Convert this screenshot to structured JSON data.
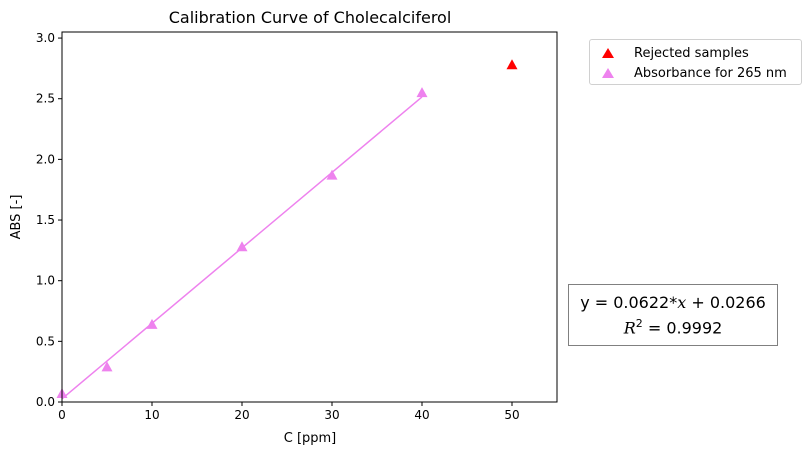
{
  "chart_data": {
    "type": "scatter",
    "title": "Calibration Curve of Cholecalciferol",
    "xlabel": "C [ppm]",
    "ylabel": "ABS [-]",
    "xlim": [
      0,
      55
    ],
    "ylim": [
      0,
      3.05
    ],
    "xticks": [
      "0",
      "10",
      "20",
      "30",
      "40",
      "50"
    ],
    "xtick_values": [
      0,
      10,
      20,
      30,
      40,
      50
    ],
    "yticks": [
      "0.0",
      "0.5",
      "1.0",
      "1.5",
      "2.0",
      "2.5",
      "3.0"
    ],
    "ytick_values": [
      0,
      0.5,
      1.0,
      1.5,
      2.0,
      2.5,
      3.0
    ],
    "grid": false,
    "legend_position": "outside-top-right",
    "series": [
      {
        "name": "Rejected samples",
        "marker": "triangle",
        "color": "#ff0000",
        "x": [
          50
        ],
        "y": [
          2.78
        ]
      },
      {
        "name": "Absorbance for 265 nm",
        "marker": "triangle",
        "color": "#ee82ee",
        "x": [
          0,
          5,
          10,
          20,
          30,
          40
        ],
        "y": [
          0.07,
          0.29,
          0.64,
          1.28,
          1.87,
          2.55
        ]
      }
    ],
    "fit_line": {
      "color": "#ee82ee",
      "slope": 0.0622,
      "intercept": 0.0266,
      "x_range": [
        0,
        40
      ]
    },
    "annotation": {
      "equation_prefix": "y = 0.0622*",
      "equation_var": "x",
      "equation_suffix": " + 0.0266",
      "r2_label": "R",
      "r2_exponent": "2",
      "r2_value": " = 0.9992"
    }
  }
}
